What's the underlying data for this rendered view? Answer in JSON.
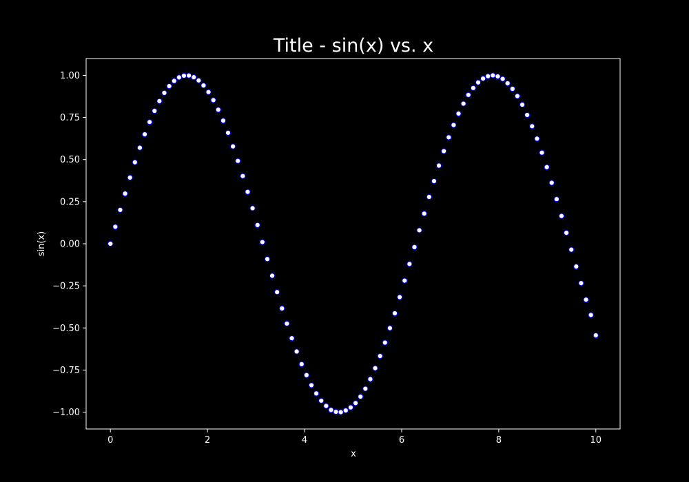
{
  "chart_data": {
    "type": "scatter",
    "title": "Title - sin(x) vs. x",
    "xlabel": "x",
    "ylabel": "sin(x)",
    "xlim": [
      -0.5,
      10.5
    ],
    "ylim": [
      -1.1,
      1.1
    ],
    "x_ticks": [
      0,
      2,
      4,
      6,
      8,
      10
    ],
    "x_tick_labels": [
      "0",
      "2",
      "4",
      "6",
      "8",
      "10"
    ],
    "y_ticks": [
      1.0,
      0.75,
      0.5,
      0.25,
      0.0,
      -0.25,
      -0.5,
      -0.75,
      -1.0
    ],
    "y_tick_labels": [
      "1.00",
      "0.75",
      "0.50",
      "0.25",
      "0.00",
      "−0.25",
      "−0.50",
      "−0.75",
      "−1.00"
    ],
    "grid": false,
    "series": [
      {
        "x": [
          0.0,
          0.101,
          0.202,
          0.303,
          0.404,
          0.505,
          0.606,
          0.707,
          0.808,
          0.909,
          1.01,
          1.111,
          1.212,
          1.313,
          1.414,
          1.515,
          1.616,
          1.717,
          1.818,
          1.919,
          2.02,
          2.121,
          2.222,
          2.323,
          2.424,
          2.525,
          2.626,
          2.727,
          2.828,
          2.929,
          3.03,
          3.131,
          3.232,
          3.333,
          3.434,
          3.535,
          3.636,
          3.737,
          3.838,
          3.939,
          4.04,
          4.141,
          4.242,
          4.343,
          4.444,
          4.545,
          4.646,
          4.747,
          4.848,
          4.949,
          5.051,
          5.152,
          5.253,
          5.354,
          5.455,
          5.556,
          5.657,
          5.758,
          5.859,
          5.96,
          6.061,
          6.162,
          6.263,
          6.364,
          6.465,
          6.566,
          6.667,
          6.768,
          6.869,
          6.97,
          7.071,
          7.172,
          7.273,
          7.374,
          7.475,
          7.576,
          7.677,
          7.778,
          7.879,
          7.98,
          8.081,
          8.182,
          8.283,
          8.384,
          8.485,
          8.586,
          8.687,
          8.788,
          8.889,
          8.99,
          9.091,
          9.192,
          9.293,
          9.394,
          9.495,
          9.596,
          9.697,
          9.798,
          9.899,
          10.0
        ],
        "y": [
          0.0,
          0.101,
          0.201,
          0.298,
          0.393,
          0.484,
          0.57,
          0.65,
          0.723,
          0.789,
          0.847,
          0.896,
          0.936,
          0.967,
          0.988,
          0.998,
          0.999,
          0.989,
          0.97,
          0.94,
          0.901,
          0.853,
          0.796,
          0.731,
          0.659,
          0.578,
          0.492,
          0.402,
          0.308,
          0.211,
          0.111,
          0.01,
          -0.091,
          -0.19,
          -0.287,
          -0.384,
          -0.474,
          -0.561,
          -0.64,
          -0.715,
          -0.78,
          -0.84,
          -0.889,
          -0.932,
          -0.963,
          -0.987,
          -0.998,
          -1.0,
          -0.99,
          -0.972,
          -0.946,
          -0.908,
          -0.861,
          -0.804,
          -0.739,
          -0.667,
          -0.587,
          -0.501,
          -0.413,
          -0.317,
          -0.219,
          -0.12,
          -0.02,
          0.08,
          0.179,
          0.278,
          0.372,
          0.464,
          0.55,
          0.632,
          0.705,
          0.773,
          0.832,
          0.884,
          0.925,
          0.958,
          0.981,
          0.995,
          1.0,
          0.994,
          0.979,
          0.953,
          0.92,
          0.877,
          0.826,
          0.765,
          0.698,
          0.624,
          0.541,
          0.455,
          0.362,
          0.265,
          0.165,
          0.065,
          -0.035,
          -0.135,
          -0.234,
          -0.332,
          -0.423,
          -0.544
        ]
      }
    ],
    "marker_face": "#ffffff",
    "marker_edge": "#0000ff",
    "axes_color": "#ffffff",
    "background": "#000000"
  }
}
